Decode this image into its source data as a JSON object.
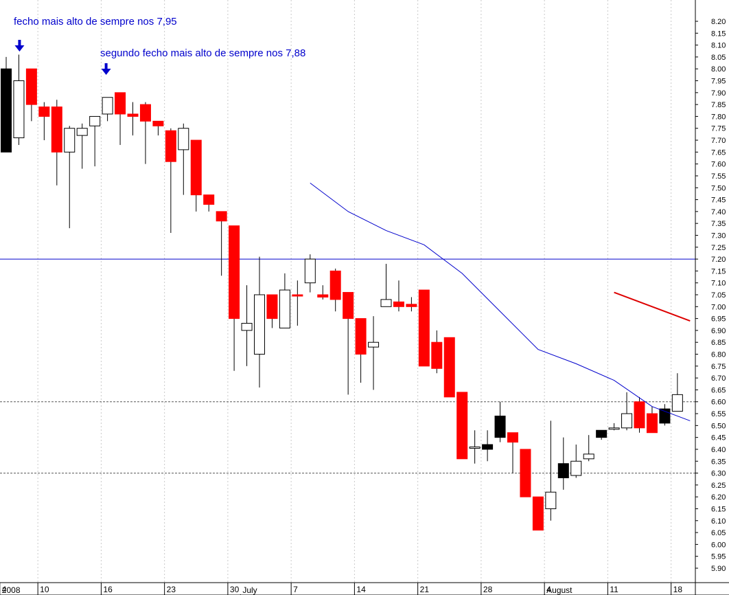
{
  "chart_data": {
    "type": "candlestick",
    "title": "",
    "xlabel": "",
    "ylabel": "",
    "ylim": [
      5.87,
      8.235
    ],
    "y_ticks": [
      5.9,
      5.95,
      6.0,
      6.05,
      6.1,
      6.15,
      6.2,
      6.25,
      6.3,
      6.35,
      6.4,
      6.45,
      6.5,
      6.55,
      6.6,
      6.65,
      6.7,
      6.75,
      6.8,
      6.85,
      6.9,
      6.95,
      7.0,
      7.05,
      7.1,
      7.15,
      7.2,
      7.25,
      7.3,
      7.35,
      7.4,
      7.45,
      7.5,
      7.55,
      7.6,
      7.65,
      7.7,
      7.75,
      7.8,
      7.85,
      7.9,
      7.95,
      8.0,
      8.05,
      8.1,
      8.15,
      8.2
    ],
    "x_day_labels": [
      "4",
      "10",
      "16",
      "23",
      "30",
      "7",
      "14",
      "21",
      "28",
      "4",
      "11",
      "18"
    ],
    "x_month_labels": [
      "2008",
      "July",
      "August"
    ],
    "horizontal_lines": [
      {
        "value": 7.2,
        "style": "solid",
        "color": "#0000cc"
      },
      {
        "value": 6.6,
        "style": "dotted",
        "color": "#555555"
      },
      {
        "value": 6.3,
        "style": "dotted",
        "color": "#555555"
      }
    ],
    "candles": [
      {
        "o": 8.0,
        "h": 8.05,
        "l": 7.65,
        "c": 7.65,
        "color": "black"
      },
      {
        "o": 7.71,
        "h": 8.06,
        "l": 7.68,
        "c": 7.95,
        "color": "white"
      },
      {
        "o": 8.0,
        "h": 8.0,
        "l": 7.78,
        "c": 7.85,
        "color": "red"
      },
      {
        "o": 7.84,
        "h": 7.86,
        "l": 7.7,
        "c": 7.8,
        "color": "red"
      },
      {
        "o": 7.84,
        "h": 7.87,
        "l": 7.51,
        "c": 7.65,
        "color": "red"
      },
      {
        "o": 7.65,
        "h": 7.76,
        "l": 7.33,
        "c": 7.75,
        "color": "white"
      },
      {
        "o": 7.72,
        "h": 7.77,
        "l": 7.58,
        "c": 7.75,
        "color": "white"
      },
      {
        "o": 7.76,
        "h": 7.8,
        "l": 7.59,
        "c": 7.8,
        "color": "white"
      },
      {
        "o": 7.81,
        "h": 7.88,
        "l": 7.78,
        "c": 7.88,
        "color": "white"
      },
      {
        "o": 7.9,
        "h": 7.9,
        "l": 7.68,
        "c": 7.81,
        "color": "red"
      },
      {
        "o": 7.81,
        "h": 7.86,
        "l": 7.72,
        "c": 7.8,
        "color": "red"
      },
      {
        "o": 7.85,
        "h": 7.86,
        "l": 7.6,
        "c": 7.78,
        "color": "red"
      },
      {
        "o": 7.78,
        "h": 7.78,
        "l": 7.72,
        "c": 7.76,
        "color": "red"
      },
      {
        "o": 7.74,
        "h": 7.75,
        "l": 7.31,
        "c": 7.61,
        "color": "red"
      },
      {
        "o": 7.66,
        "h": 7.77,
        "l": 7.47,
        "c": 7.75,
        "color": "white"
      },
      {
        "o": 7.7,
        "h": 7.7,
        "l": 7.4,
        "c": 7.47,
        "color": "red"
      },
      {
        "o": 7.47,
        "h": 7.47,
        "l": 7.4,
        "c": 7.43,
        "color": "red"
      },
      {
        "o": 7.4,
        "h": 7.4,
        "l": 7.13,
        "c": 7.36,
        "color": "red"
      },
      {
        "o": 7.34,
        "h": 7.34,
        "l": 6.73,
        "c": 6.95,
        "color": "red"
      },
      {
        "o": 6.9,
        "h": 7.09,
        "l": 6.75,
        "c": 6.93,
        "color": "white"
      },
      {
        "o": 6.8,
        "h": 7.21,
        "l": 6.66,
        "c": 7.05,
        "color": "white"
      },
      {
        "o": 7.05,
        "h": 7.05,
        "l": 6.91,
        "c": 6.95,
        "color": "red"
      },
      {
        "o": 6.91,
        "h": 7.14,
        "l": 6.91,
        "c": 7.07,
        "color": "white"
      },
      {
        "o": 7.05,
        "h": 7.11,
        "l": 6.92,
        "c": 7.05,
        "color": "red"
      },
      {
        "o": 7.1,
        "h": 7.22,
        "l": 7.06,
        "c": 7.2,
        "color": "white"
      },
      {
        "o": 7.05,
        "h": 7.09,
        "l": 7.03,
        "c": 7.04,
        "color": "red"
      },
      {
        "o": 7.15,
        "h": 7.16,
        "l": 6.98,
        "c": 7.03,
        "color": "red"
      },
      {
        "o": 7.06,
        "h": 7.06,
        "l": 6.63,
        "c": 6.95,
        "color": "red"
      },
      {
        "o": 6.95,
        "h": 6.95,
        "l": 6.68,
        "c": 6.8,
        "color": "red"
      },
      {
        "o": 6.83,
        "h": 6.96,
        "l": 6.65,
        "c": 6.85,
        "color": "white"
      },
      {
        "o": 7.0,
        "h": 7.18,
        "l": 7.0,
        "c": 7.03,
        "color": "white"
      },
      {
        "o": 7.02,
        "h": 7.11,
        "l": 6.98,
        "c": 7.0,
        "color": "red"
      },
      {
        "o": 7.01,
        "h": 7.04,
        "l": 6.98,
        "c": 7.0,
        "color": "red"
      },
      {
        "o": 7.07,
        "h": 7.07,
        "l": 6.75,
        "c": 6.75,
        "color": "red"
      },
      {
        "o": 6.85,
        "h": 6.9,
        "l": 6.72,
        "c": 6.74,
        "color": "red"
      },
      {
        "o": 6.87,
        "h": 6.87,
        "l": 6.62,
        "c": 6.62,
        "color": "red"
      },
      {
        "o": 6.64,
        "h": 6.64,
        "l": 6.36,
        "c": 6.36,
        "color": "red"
      },
      {
        "o": 6.41,
        "h": 6.48,
        "l": 6.34,
        "c": 6.41,
        "color": "white"
      },
      {
        "o": 6.4,
        "h": 6.48,
        "l": 6.35,
        "c": 6.42,
        "color": "black"
      },
      {
        "o": 6.45,
        "h": 6.6,
        "l": 6.43,
        "c": 6.54,
        "color": "black"
      },
      {
        "o": 6.47,
        "h": 6.47,
        "l": 6.3,
        "c": 6.43,
        "color": "red"
      },
      {
        "o": 6.4,
        "h": 6.4,
        "l": 6.2,
        "c": 6.2,
        "color": "red"
      },
      {
        "o": 6.2,
        "h": 6.2,
        "l": 6.06,
        "c": 6.06,
        "color": "red"
      },
      {
        "o": 6.15,
        "h": 6.52,
        "l": 6.1,
        "c": 6.22,
        "color": "white"
      },
      {
        "o": 6.34,
        "h": 6.45,
        "l": 6.23,
        "c": 6.28,
        "color": "black"
      },
      {
        "o": 6.29,
        "h": 6.42,
        "l": 6.28,
        "c": 6.35,
        "color": "white"
      },
      {
        "o": 6.36,
        "h": 6.46,
        "l": 6.35,
        "c": 6.38,
        "color": "white"
      },
      {
        "o": 6.45,
        "h": 6.48,
        "l": 6.44,
        "c": 6.48,
        "color": "black"
      },
      {
        "o": 6.49,
        "h": 6.51,
        "l": 6.48,
        "c": 6.49,
        "color": "white"
      },
      {
        "o": 6.49,
        "h": 6.64,
        "l": 6.48,
        "c": 6.55,
        "color": "white"
      },
      {
        "o": 6.6,
        "h": 6.62,
        "l": 6.47,
        "c": 6.49,
        "color": "red"
      },
      {
        "o": 6.55,
        "h": 6.58,
        "l": 6.47,
        "c": 6.47,
        "color": "red"
      },
      {
        "o": 6.51,
        "h": 6.59,
        "l": 6.5,
        "c": 6.57,
        "color": "black"
      },
      {
        "o": 6.56,
        "h": 6.72,
        "l": 6.56,
        "c": 6.63,
        "color": "white"
      }
    ],
    "series": [
      {
        "values_by_candle": [
          [
            24,
            7.52
          ],
          [
            27,
            7.4
          ],
          [
            30,
            7.32
          ],
          [
            33,
            7.26
          ],
          [
            36,
            7.14
          ],
          [
            39,
            6.98
          ],
          [
            42,
            6.82
          ],
          [
            45,
            6.76
          ],
          [
            48,
            6.69
          ],
          [
            51,
            6.58
          ],
          [
            54,
            6.52
          ]
        ],
        "color": "#0000cc"
      },
      {
        "values_by_candle": [
          [
            48,
            7.06
          ],
          [
            51,
            7.0
          ],
          [
            54,
            6.94
          ]
        ],
        "color": "#dd0000"
      }
    ],
    "annotations": [
      {
        "text": "fecho mais alto de sempre nos 7,95",
        "candle": 1
      },
      {
        "text": "segundo fecho mais alto de sempre nos 7,88",
        "candle": 8
      }
    ]
  }
}
